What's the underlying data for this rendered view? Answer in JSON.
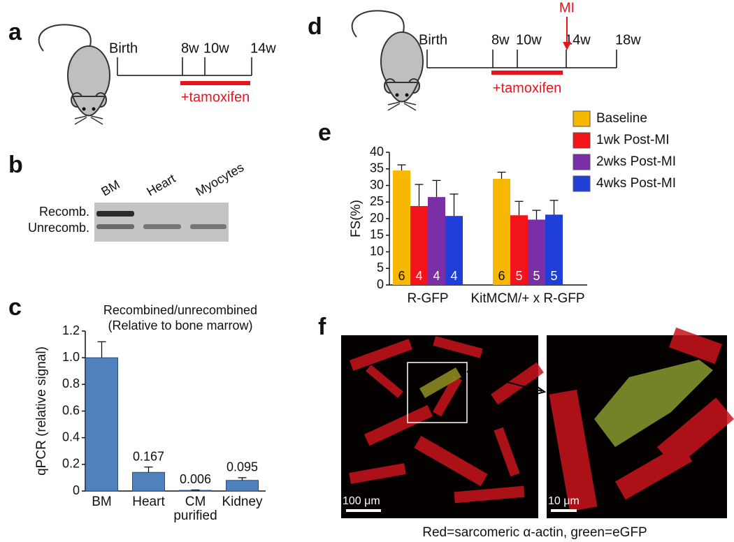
{
  "panel_labels": [
    "a",
    "b",
    "c",
    "d",
    "e",
    "f"
  ],
  "timeline_a": {
    "events": [
      "Birth",
      "8w",
      "10w",
      "14w"
    ],
    "treatment": "+tamoxifen"
  },
  "timeline_d": {
    "events": [
      "Birth",
      "8w",
      "10w",
      "14w",
      "18w"
    ],
    "treatment": "+tamoxifen",
    "marker": "MI"
  },
  "gel": {
    "lanes": [
      "BM",
      "Heart",
      "Myocytes"
    ],
    "bands": [
      "Recomb.",
      "Unrecomb."
    ]
  },
  "micrographs": {
    "scale_bars": [
      "100 μm",
      "10 μm"
    ],
    "caption": "Red=sarcomeric α-actin, green=eGFP"
  },
  "chart_data": [
    {
      "type": "bar",
      "title": "Recombined/unrecombined",
      "subtitle": "(Relative to bone marrow)",
      "y_label": "qPCR (relative signal)",
      "categories": [
        "BM",
        "Heart",
        "CM purified",
        "Kidney"
      ],
      "values": [
        1.0,
        0.14,
        0.005,
        0.08
      ],
      "errors": [
        0.12,
        0.04,
        0.003,
        0.02
      ],
      "annotations": [
        "0.167",
        "0.006",
        "0.095"
      ],
      "color": "#4f81bd",
      "ylim": [
        0,
        1.2
      ],
      "yticks": [
        0,
        0.2,
        0.4,
        0.6,
        0.8,
        {
          "value": 1,
          "label": "1.0"
        },
        1.2
      ]
    },
    {
      "type": "bar",
      "y_label": "FS(%)",
      "categories": [
        "R-GFP",
        "KitMCM/+ x R-GFP"
      ],
      "series": [
        {
          "name": "Baseline",
          "color": "#f9b800",
          "values": [
            34.5,
            32
          ],
          "errors": [
            1.7,
            2
          ],
          "n": [
            6,
            6
          ]
        },
        {
          "name": "1wk Post-MI",
          "color": "#f2141a",
          "values": [
            23.8,
            21
          ],
          "errors": [
            6.5,
            4.2
          ],
          "n": [
            4,
            5
          ]
        },
        {
          "name": "2wks Post-MI",
          "color": "#7b2fa6",
          "values": [
            26.5,
            19.7
          ],
          "errors": [
            5,
            2.8
          ],
          "n": [
            4,
            5
          ]
        },
        {
          "name": "4wks Post-MI",
          "color": "#1f3fd8",
          "values": [
            20.8,
            21.2
          ],
          "errors": [
            6.6,
            4.3
          ],
          "n": [
            4,
            5
          ]
        }
      ],
      "legend": "upper right",
      "ylim": [
        0,
        40
      ],
      "yticks": [
        0,
        5,
        10,
        15,
        20,
        25,
        30,
        35,
        40
      ]
    }
  ]
}
